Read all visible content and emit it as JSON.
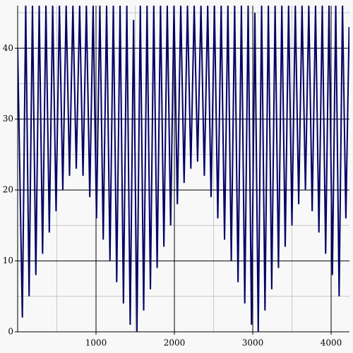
{
  "chart_data": {
    "type": "line",
    "x": [
      0,
      60,
      103,
      146,
      189,
      232,
      275,
      318,
      361,
      404,
      447,
      490,
      533,
      576,
      619,
      662,
      705,
      748,
      791,
      834,
      877,
      920,
      963,
      1006,
      1049,
      1092,
      1135,
      1178,
      1221,
      1264,
      1307,
      1350,
      1393,
      1436,
      1479,
      1522,
      1565,
      1608,
      1651,
      1694,
      1737,
      1780,
      1823,
      1866,
      1909,
      1952,
      1995,
      2038,
      2081,
      2124,
      2167,
      2210,
      2253,
      2296,
      2339,
      2382,
      2425,
      2468,
      2511,
      2554,
      2597,
      2640,
      2683,
      2726,
      2769,
      2812,
      2855,
      2898,
      2941,
      2984,
      3027,
      3070,
      3113,
      3156,
      3199,
      3242,
      3285,
      3328,
      3371,
      3414,
      3457,
      3500,
      3543,
      3586,
      3629,
      3672,
      3715,
      3758,
      3801,
      3844,
      3887,
      3930,
      3973,
      4016,
      4059,
      4102,
      4145,
      4188,
      4230
    ],
    "series": [
      {
        "color": "#000066",
        "values": [
          40,
          2,
          46,
          5,
          46,
          8,
          46,
          11,
          46,
          14,
          46,
          17,
          46,
          20,
          46,
          22,
          46,
          23,
          46,
          22,
          46,
          19,
          46,
          16,
          46,
          13,
          46,
          10,
          46,
          7,
          46,
          4,
          46,
          1,
          44,
          0,
          46,
          3,
          46,
          6,
          46,
          9,
          46,
          12,
          46,
          15,
          46,
          18,
          46,
          21,
          46,
          23,
          46,
          24,
          46,
          22,
          46,
          19,
          46,
          16,
          46,
          13,
          46,
          10,
          46,
          7,
          46,
          4,
          46,
          1,
          45,
          0,
          46,
          3,
          46,
          6,
          46,
          9,
          46,
          12,
          46,
          15,
          46,
          18,
          46,
          20,
          46,
          17,
          46,
          14,
          46,
          11,
          46,
          8,
          46,
          5,
          46,
          16,
          43
        ]
      }
    ],
    "xlim": [
      0,
      4234
    ],
    "ylim": [
      0,
      46
    ],
    "xticks": [
      1000,
      2000,
      3000,
      4000
    ],
    "yticks": [
      0,
      10,
      20,
      30,
      40
    ],
    "minor_xticks": [
      500,
      1500,
      2500,
      3500
    ],
    "minor_yticks": [
      5,
      15,
      25,
      35,
      45
    ],
    "grid": true
  }
}
